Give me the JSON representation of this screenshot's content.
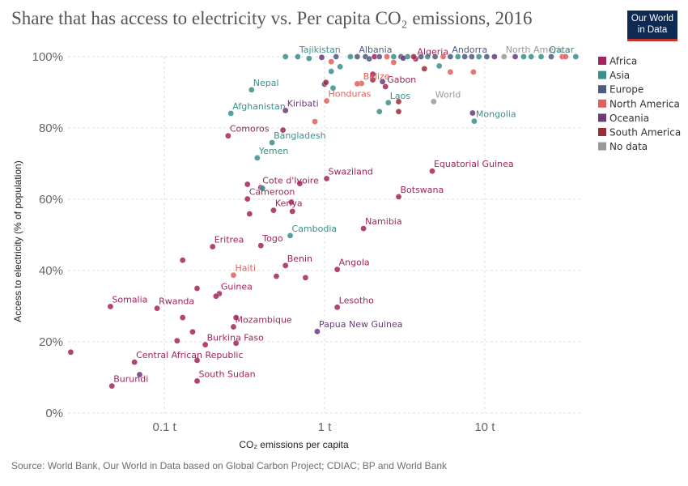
{
  "title": "Share that has access to electricity vs. Per capita CO₂ emissions, 2016",
  "logo": {
    "line1": "Our World",
    "line2": "in Data"
  },
  "source": "Source: World Bank, Our World in Data based on Global Carbon Project; CDIAC; BP and World Bank",
  "chart_data": {
    "type": "scatter",
    "xlabel": "CO₂ emissions per capita",
    "ylabel": "Access to electricity (% of population)",
    "x_scale": "log",
    "xlim": [
      0.025,
      40
    ],
    "ylim": [
      0,
      100
    ],
    "x_ticks": [
      {
        "value": 0.1,
        "label": "0.1 t"
      },
      {
        "value": 1,
        "label": "1 t"
      },
      {
        "value": 10,
        "label": "10 t"
      }
    ],
    "y_ticks": [
      {
        "value": 0,
        "label": "0%"
      },
      {
        "value": 20,
        "label": "20%"
      },
      {
        "value": 40,
        "label": "40%"
      },
      {
        "value": 60,
        "label": "60%"
      },
      {
        "value": 80,
        "label": "80%"
      },
      {
        "value": 100,
        "label": "100%"
      }
    ],
    "grid": true,
    "legend_position": "right",
    "colors": {
      "Africa": "#a2245c",
      "Asia": "#3a8f8c",
      "Europe": "#4e5a80",
      "North America": "#e0605a",
      "Oceania": "#6a3a7a",
      "South America": "#9a2d3a",
      "No data": "#999999"
    },
    "legend": [
      "Africa",
      "Asia",
      "Europe",
      "North America",
      "Oceania",
      "South America",
      "No data"
    ],
    "points": [
      {
        "label": "Tajikistan",
        "x": 0.68,
        "y": 100,
        "region": "Asia"
      },
      {
        "label": "Albania",
        "x": 1.6,
        "y": 100,
        "region": "Europe"
      },
      {
        "label": "Algeria",
        "x": 3.7,
        "y": 99.4,
        "region": "Africa"
      },
      {
        "label": "Andorra",
        "x": 6.1,
        "y": 100,
        "region": "Europe"
      },
      {
        "label": "North America",
        "x": 13.2,
        "y": 100,
        "region": "No data"
      },
      {
        "label": "Qatar",
        "x": 37.0,
        "y": 100,
        "region": "Asia"
      },
      {
        "label": "Nepal",
        "x": 0.35,
        "y": 90.7,
        "region": "Asia"
      },
      {
        "label": "Belize",
        "x": 1.7,
        "y": 92.5,
        "region": "North America"
      },
      {
        "label": "Gabon",
        "x": 2.4,
        "y": 91.6,
        "region": "Africa"
      },
      {
        "label": "Honduras",
        "x": 1.03,
        "y": 87.6,
        "region": "North America"
      },
      {
        "label": "Laos",
        "x": 2.5,
        "y": 87.1,
        "region": "Asia"
      },
      {
        "label": "World",
        "x": 4.8,
        "y": 87.4,
        "region": "No data"
      },
      {
        "label": "Afghanistan",
        "x": 0.26,
        "y": 84.1,
        "region": "Asia"
      },
      {
        "label": "Kiribati",
        "x": 0.57,
        "y": 84.9,
        "region": "Oceania"
      },
      {
        "label": "Mongolia",
        "x": 8.6,
        "y": 81.9,
        "region": "Asia"
      },
      {
        "label": "Comoros",
        "x": 0.25,
        "y": 77.8,
        "region": "Africa"
      },
      {
        "label": "Bangladesh",
        "x": 0.47,
        "y": 75.9,
        "region": "Asia"
      },
      {
        "label": "Yemen",
        "x": 0.38,
        "y": 71.6,
        "region": "Asia"
      },
      {
        "label": "Equatorial Guinea",
        "x": 4.7,
        "y": 67.9,
        "region": "Africa"
      },
      {
        "label": "Swaziland",
        "x": 1.03,
        "y": 65.8,
        "region": "Africa"
      },
      {
        "label": "Cote d'Ivoire",
        "x": 0.4,
        "y": 63.3,
        "region": "Africa"
      },
      {
        "label": "Botswana",
        "x": 2.9,
        "y": 60.7,
        "region": "Africa"
      },
      {
        "label": "Cameroon",
        "x": 0.33,
        "y": 60.1,
        "region": "Africa"
      },
      {
        "label": "Kenya",
        "x": 0.48,
        "y": 56.9,
        "region": "Africa"
      },
      {
        "label": "Namibia",
        "x": 1.75,
        "y": 51.8,
        "region": "Africa"
      },
      {
        "label": "Cambodia",
        "x": 0.61,
        "y": 49.8,
        "region": "Asia"
      },
      {
        "label": "Togo",
        "x": 0.4,
        "y": 47.0,
        "region": "Africa"
      },
      {
        "label": "Eritrea",
        "x": 0.2,
        "y": 46.7,
        "region": "Africa"
      },
      {
        "label": "Benin",
        "x": 0.57,
        "y": 41.4,
        "region": "Africa"
      },
      {
        "label": "Angola",
        "x": 1.2,
        "y": 40.3,
        "region": "Africa"
      },
      {
        "label": "Haiti",
        "x": 0.27,
        "y": 38.7,
        "region": "North America"
      },
      {
        "label": "Guinea",
        "x": 0.22,
        "y": 33.5,
        "region": "Africa"
      },
      {
        "label": "Somalia",
        "x": 0.046,
        "y": 29.9,
        "region": "Africa"
      },
      {
        "label": "Rwanda",
        "x": 0.09,
        "y": 29.4,
        "region": "Africa"
      },
      {
        "label": "Lesotho",
        "x": 1.2,
        "y": 29.7,
        "region": "Africa"
      },
      {
        "label": "Mozambique",
        "x": 0.27,
        "y": 24.2,
        "region": "Africa"
      },
      {
        "label": "Papua New Guinea",
        "x": 0.9,
        "y": 22.9,
        "region": "Oceania"
      },
      {
        "label": "Burkina Faso",
        "x": 0.18,
        "y": 19.2,
        "region": "Africa"
      },
      {
        "label": "Central African Republic",
        "x": 0.065,
        "y": 14.3,
        "region": "Africa"
      },
      {
        "label": "South Sudan",
        "x": 0.16,
        "y": 9.0,
        "region": "Africa"
      },
      {
        "label": "Burundi",
        "x": 0.047,
        "y": 7.6,
        "region": "Africa"
      },
      {
        "label": "",
        "x": 0.026,
        "y": 17.1,
        "region": "Africa"
      },
      {
        "label": "",
        "x": 0.13,
        "y": 42.9,
        "region": "Africa"
      },
      {
        "label": "",
        "x": 0.16,
        "y": 35.0,
        "region": "Africa"
      },
      {
        "label": "",
        "x": 0.13,
        "y": 26.8,
        "region": "Africa"
      },
      {
        "label": "",
        "x": 0.15,
        "y": 22.8,
        "region": "Africa"
      },
      {
        "label": "",
        "x": 0.12,
        "y": 20.3,
        "region": "Africa"
      },
      {
        "label": "",
        "x": 0.28,
        "y": 19.6,
        "region": "Africa"
      },
      {
        "label": "",
        "x": 0.16,
        "y": 14.8,
        "region": "Africa"
      },
      {
        "label": "",
        "x": 0.07,
        "y": 10.8,
        "region": "Oceania"
      },
      {
        "label": "",
        "x": 0.21,
        "y": 32.8,
        "region": "Africa"
      },
      {
        "label": "",
        "x": 0.28,
        "y": 26.8,
        "region": "Africa"
      },
      {
        "label": "",
        "x": 0.5,
        "y": 38.4,
        "region": "Africa"
      },
      {
        "label": "",
        "x": 0.76,
        "y": 38.0,
        "region": "Africa"
      },
      {
        "label": "",
        "x": 0.62,
        "y": 59.2,
        "region": "Africa"
      },
      {
        "label": "",
        "x": 0.63,
        "y": 56.6,
        "region": "Africa"
      },
      {
        "label": "",
        "x": 0.7,
        "y": 64.4,
        "region": "Africa"
      },
      {
        "label": "",
        "x": 0.33,
        "y": 64.2,
        "region": "Africa"
      },
      {
        "label": "",
        "x": 0.34,
        "y": 55.9,
        "region": "Africa"
      },
      {
        "label": "",
        "x": 0.41,
        "y": 63.1,
        "region": "Asia"
      },
      {
        "label": "",
        "x": 0.55,
        "y": 79.4,
        "region": "Africa"
      },
      {
        "label": "",
        "x": 0.87,
        "y": 81.8,
        "region": "North America"
      },
      {
        "label": "",
        "x": 1.1,
        "y": 95.9,
        "region": "Asia"
      },
      {
        "label": "",
        "x": 1.13,
        "y": 91.2,
        "region": "Asia"
      },
      {
        "label": "",
        "x": 1.0,
        "y": 92.3,
        "region": "Oceania"
      },
      {
        "label": "",
        "x": 1.02,
        "y": 92.8,
        "region": "South America"
      },
      {
        "label": "",
        "x": 1.1,
        "y": 98.6,
        "region": "North America"
      },
      {
        "label": "",
        "x": 1.6,
        "y": 92.4,
        "region": "North America"
      },
      {
        "label": "",
        "x": 2.0,
        "y": 95.1,
        "region": "Africa"
      },
      {
        "label": "",
        "x": 2.0,
        "y": 93.5,
        "region": "South America"
      },
      {
        "label": "",
        "x": 2.3,
        "y": 93.0,
        "region": "Oceania"
      },
      {
        "label": "",
        "x": 2.9,
        "y": 84.6,
        "region": "South America"
      },
      {
        "label": "",
        "x": 2.9,
        "y": 87.4,
        "region": "South America"
      },
      {
        "label": "",
        "x": 2.2,
        "y": 84.6,
        "region": "Asia"
      },
      {
        "label": "",
        "x": 6.1,
        "y": 95.7,
        "region": "North America"
      },
      {
        "label": "",
        "x": 8.5,
        "y": 95.7,
        "region": "North America"
      },
      {
        "label": "",
        "x": 8.4,
        "y": 84.2,
        "region": "Oceania"
      },
      {
        "label": "",
        "x": 4.2,
        "y": 96.6,
        "region": "South America"
      },
      {
        "label": "",
        "x": 1.25,
        "y": 97.2,
        "region": "Asia"
      },
      {
        "label": "",
        "x": 2.7,
        "y": 98.4,
        "region": "North America"
      },
      {
        "label": "",
        "x": 5.2,
        "y": 97.4,
        "region": "Asia"
      },
      {
        "label": "",
        "x": 0.57,
        "y": 100,
        "region": "Asia"
      },
      {
        "label": "",
        "x": 0.96,
        "y": 99.8,
        "region": "Oceania"
      },
      {
        "label": "",
        "x": 1.18,
        "y": 100,
        "region": "Europe"
      },
      {
        "label": "",
        "x": 1.45,
        "y": 100,
        "region": "Asia"
      },
      {
        "label": "",
        "x": 1.8,
        "y": 100,
        "region": "Europe"
      },
      {
        "label": "",
        "x": 2.05,
        "y": 100,
        "region": "Africa"
      },
      {
        "label": "",
        "x": 2.2,
        "y": 100,
        "region": "Europe"
      },
      {
        "label": "",
        "x": 2.45,
        "y": 100,
        "region": "North America"
      },
      {
        "label": "",
        "x": 2.7,
        "y": 100,
        "region": "Asia"
      },
      {
        "label": "",
        "x": 3.0,
        "y": 100,
        "region": "Europe"
      },
      {
        "label": "",
        "x": 3.3,
        "y": 100,
        "region": "Asia"
      },
      {
        "label": "",
        "x": 3.6,
        "y": 100,
        "region": "South America"
      },
      {
        "label": "",
        "x": 4.0,
        "y": 100,
        "region": "Europe"
      },
      {
        "label": "",
        "x": 4.4,
        "y": 100,
        "region": "Asia"
      },
      {
        "label": "",
        "x": 4.9,
        "y": 100,
        "region": "Europe"
      },
      {
        "label": "",
        "x": 5.5,
        "y": 100,
        "region": "North America"
      },
      {
        "label": "",
        "x": 6.8,
        "y": 100,
        "region": "Asia"
      },
      {
        "label": "",
        "x": 7.5,
        "y": 100,
        "region": "Europe"
      },
      {
        "label": "",
        "x": 8.3,
        "y": 100,
        "region": "Europe"
      },
      {
        "label": "",
        "x": 9.2,
        "y": 100,
        "region": "Asia"
      },
      {
        "label": "",
        "x": 10.3,
        "y": 100,
        "region": "Europe"
      },
      {
        "label": "",
        "x": 11.5,
        "y": 100,
        "region": "Oceania"
      },
      {
        "label": "",
        "x": 15.5,
        "y": 100,
        "region": "Oceania"
      },
      {
        "label": "",
        "x": 17.5,
        "y": 100,
        "region": "Asia"
      },
      {
        "label": "",
        "x": 19.5,
        "y": 100,
        "region": "Asia"
      },
      {
        "label": "",
        "x": 22.5,
        "y": 100,
        "region": "Asia"
      },
      {
        "label": "",
        "x": 26.0,
        "y": 100,
        "region": "Europe"
      },
      {
        "label": "",
        "x": 30.5,
        "y": 100,
        "region": "North America"
      },
      {
        "label": "",
        "x": 32.0,
        "y": 100,
        "region": "North America"
      },
      {
        "label": "",
        "x": 0.8,
        "y": 99.5,
        "region": "Asia"
      },
      {
        "label": "",
        "x": 1.9,
        "y": 99.4,
        "region": "Europe"
      },
      {
        "label": "",
        "x": 3.1,
        "y": 99.6,
        "region": "Oceania"
      }
    ]
  }
}
